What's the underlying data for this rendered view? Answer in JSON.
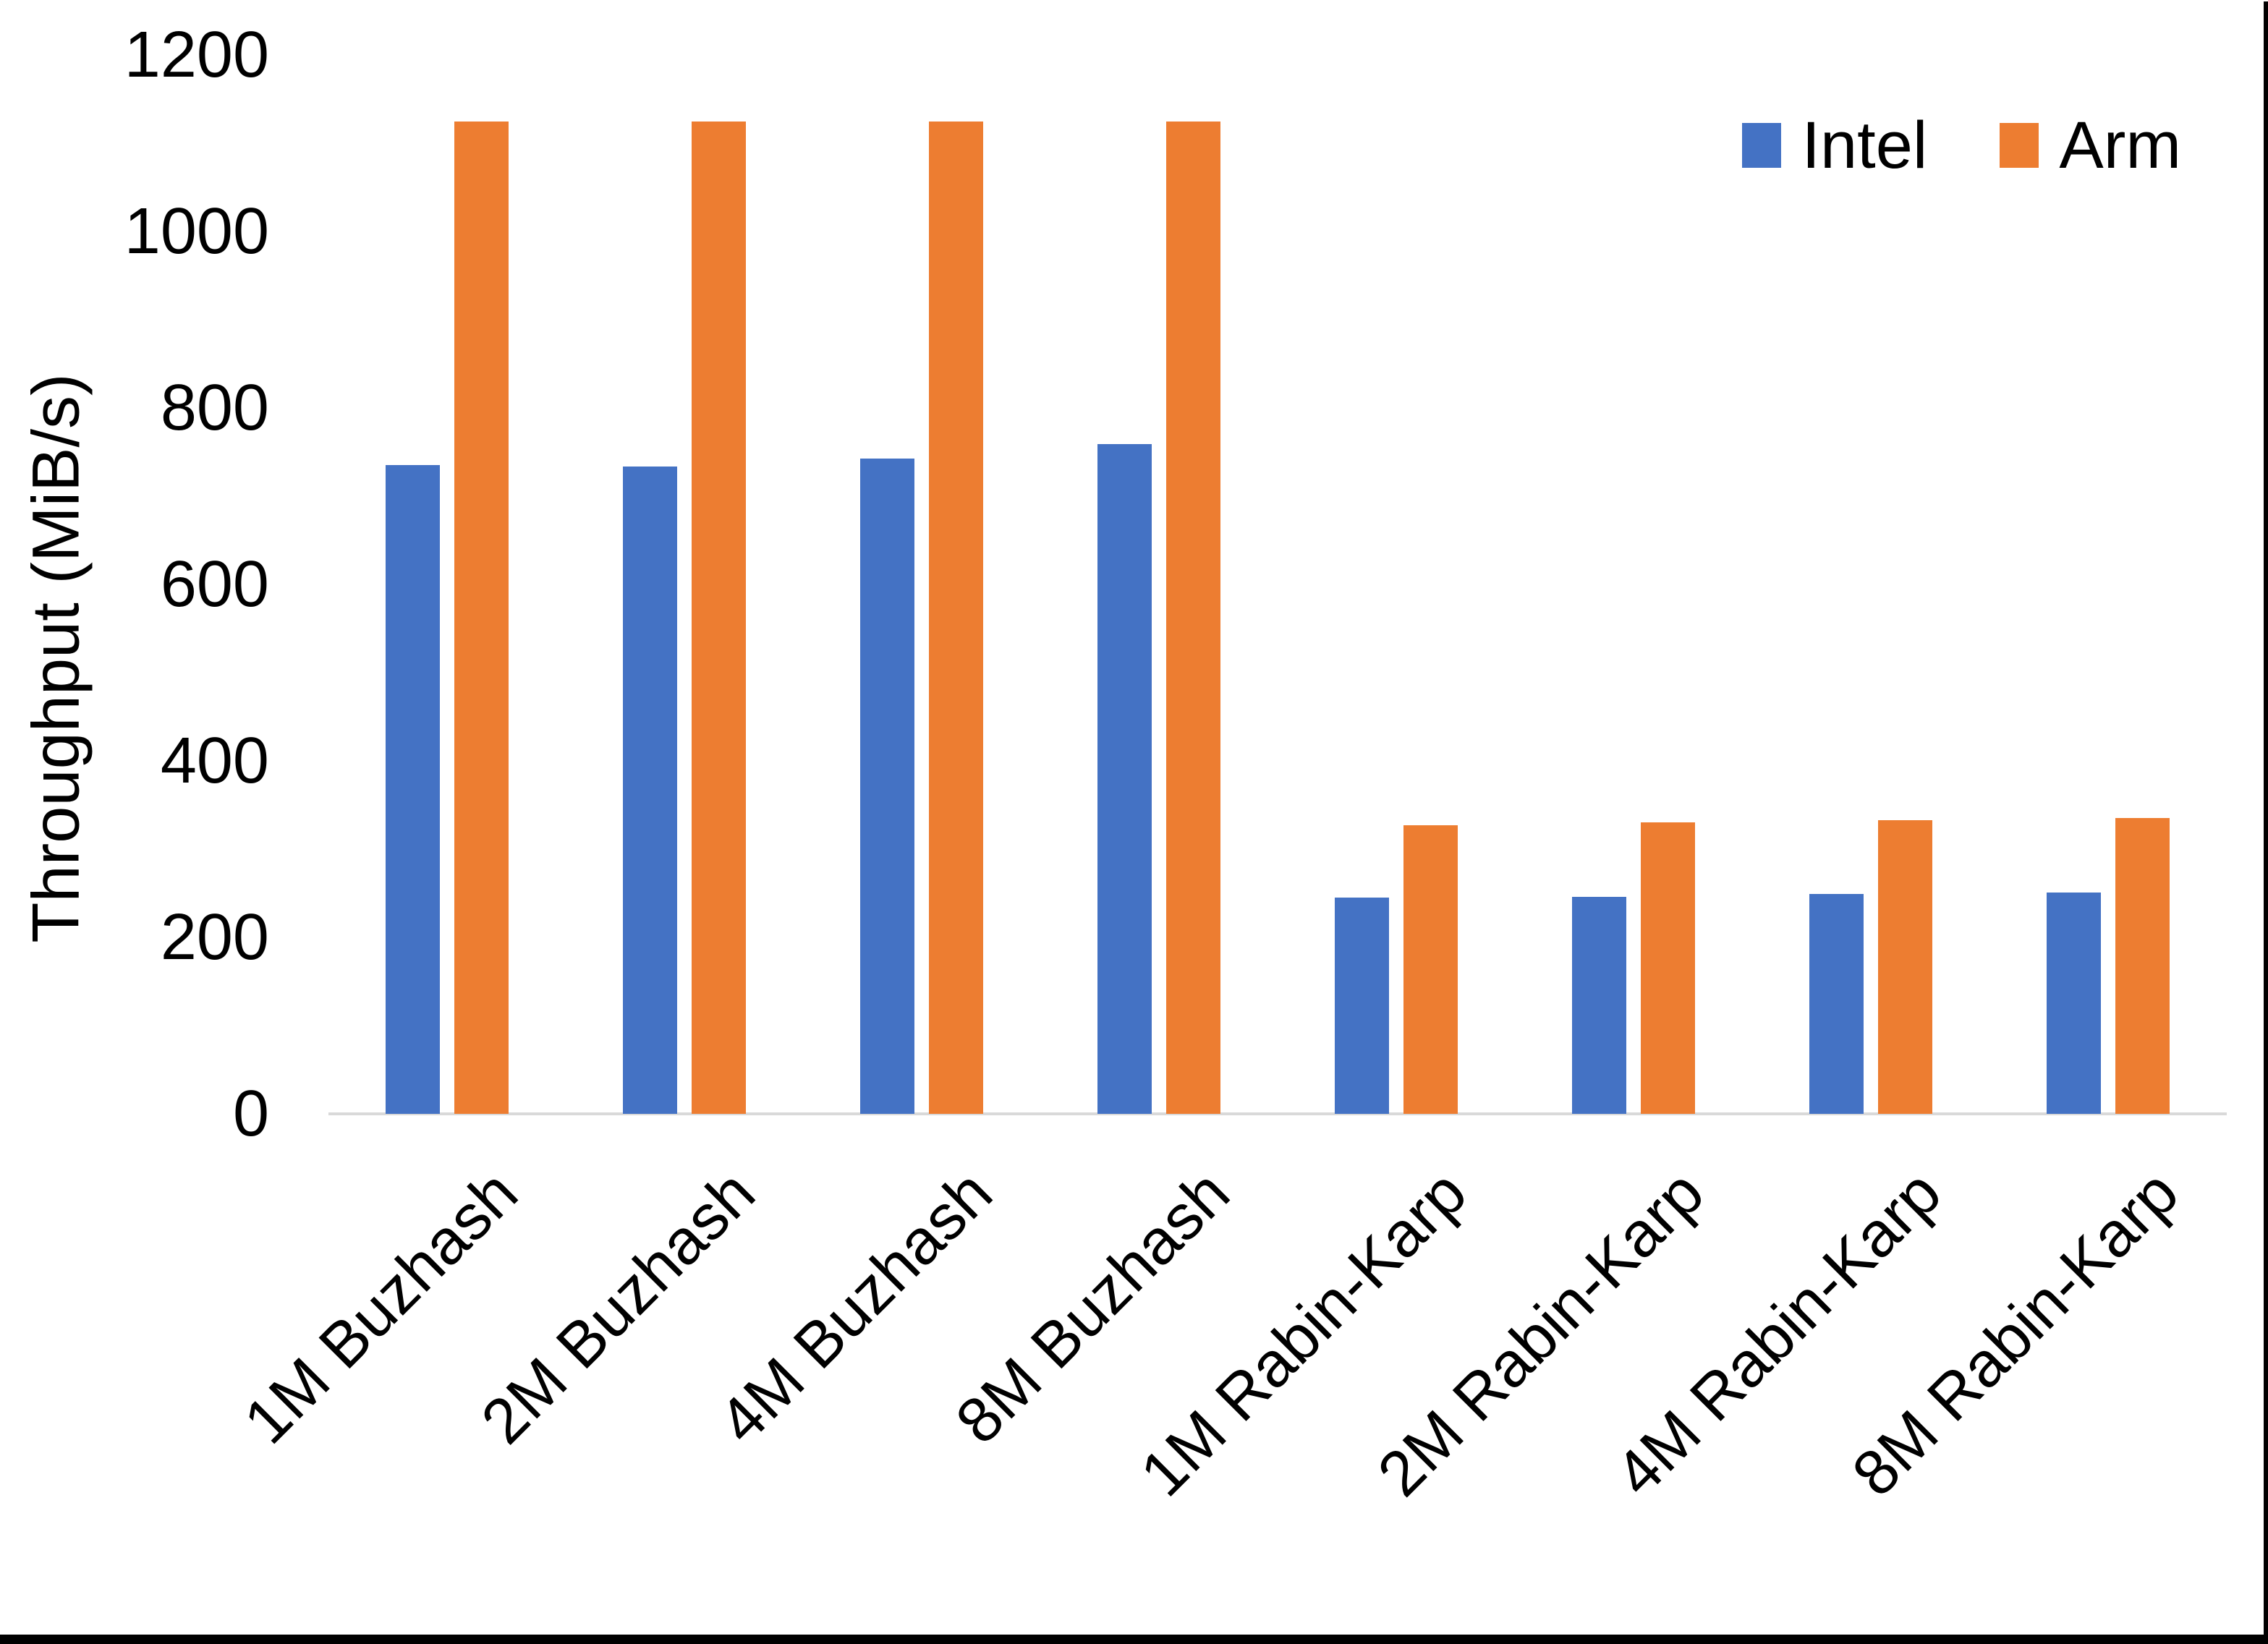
{
  "chart_data": {
    "type": "bar",
    "title": "",
    "xlabel": "",
    "ylabel": "Throughput (MiB/s)",
    "ylim": [
      0,
      1200
    ],
    "yticks": [
      0,
      200,
      400,
      600,
      800,
      1000,
      1200
    ],
    "grid": false,
    "legend_position": "top-right",
    "categories": [
      "1M Buzhash",
      "2M Buzhash",
      "4M Buzhash",
      "8M Buzhash",
      "1M Rabin-Karp",
      "2M Rabin-Karp",
      "4M Rabin-Karp",
      "8M Rabin-Karp"
    ],
    "series": [
      {
        "name": "Intel",
        "color": "#4472C4",
        "values": [
          735,
          734,
          743,
          759,
          245,
          246,
          249,
          251
        ]
      },
      {
        "name": "Arm",
        "color": "#ED7D31",
        "values": [
          1125,
          1125,
          1125,
          1125,
          327,
          330,
          333,
          335
        ]
      }
    ]
  },
  "colors": {
    "axis_line": "#D9D9D9",
    "background": "#FFFFFF",
    "frame": "#000000"
  }
}
